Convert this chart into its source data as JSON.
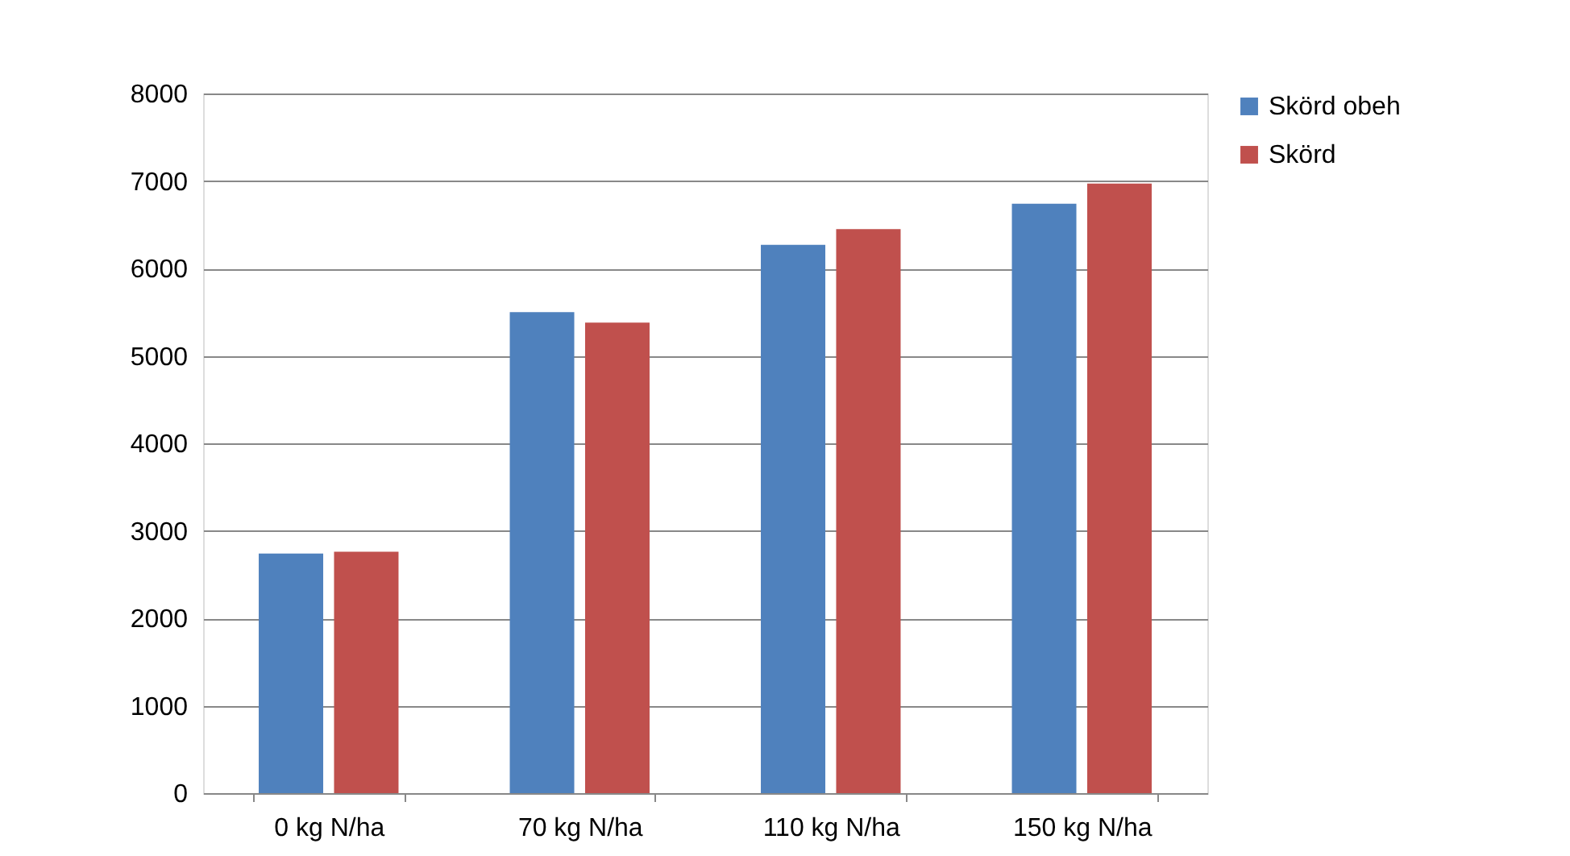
{
  "chart_data": {
    "type": "bar",
    "categories": [
      "0 kg N/ha",
      "70 kg N/ha",
      "110 kg N/ha",
      "150 kg N/ha"
    ],
    "series": [
      {
        "name": "Skörd obeh",
        "color": "#4f81bd",
        "values": [
          2740,
          5500,
          6270,
          6740
        ]
      },
      {
        "name": "Skörd",
        "color": "#c0504d",
        "values": [
          2760,
          5380,
          6450,
          6970
        ]
      }
    ],
    "ylim": [
      0,
      8000
    ],
    "yticks": [
      0,
      1000,
      2000,
      3000,
      4000,
      5000,
      6000,
      7000,
      8000
    ],
    "grid": "y",
    "legend": "right"
  }
}
